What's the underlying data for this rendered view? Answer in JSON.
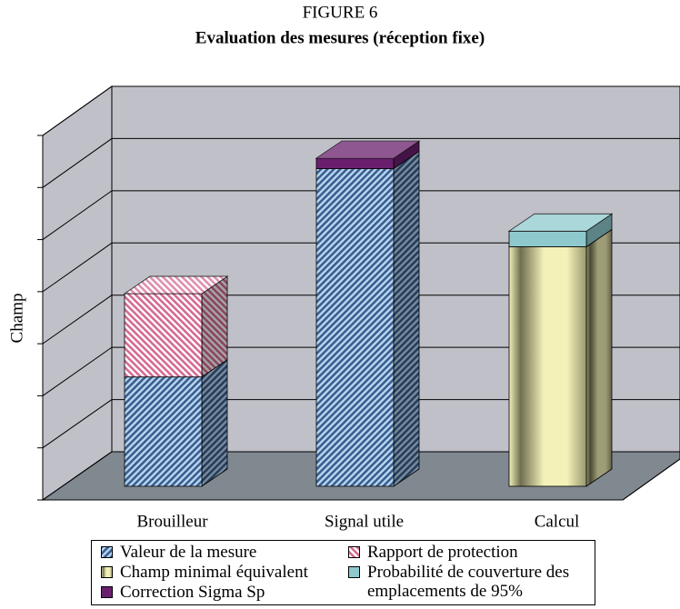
{
  "chart_data": {
    "type": "bar3d_stacked",
    "title": "FIGURE 6",
    "subtitle": "Evaluation des mesures (réception fixe)",
    "y_label": "Champ",
    "categories": [
      "Brouilleur",
      "Signal utile",
      "Calcul"
    ],
    "series": [
      {
        "name": "Valeur de la mesure",
        "color": "#3b5d8f",
        "values": [
          2.1,
          6.1,
          null
        ]
      },
      {
        "name": "Rapport de protection",
        "color": "#d46a92",
        "values": [
          1.6,
          null,
          null
        ]
      },
      {
        "name": "Champ minimal équivalent",
        "color": "#f3f1b8",
        "values": [
          null,
          null,
          4.6
        ]
      },
      {
        "name": "Correction Sigma Sp",
        "color": "#6a1f6e",
        "values": [
          null,
          0.2,
          null
        ]
      },
      {
        "name": "Probabilité de couverture des emplacements de 95%",
        "color": "#8ecacd",
        "values": [
          null,
          null,
          0.3
        ]
      }
    ],
    "ylim": [
      0,
      7
    ],
    "yticks": [
      0,
      1,
      2,
      3,
      4,
      5,
      6,
      7
    ],
    "grid": true
  }
}
